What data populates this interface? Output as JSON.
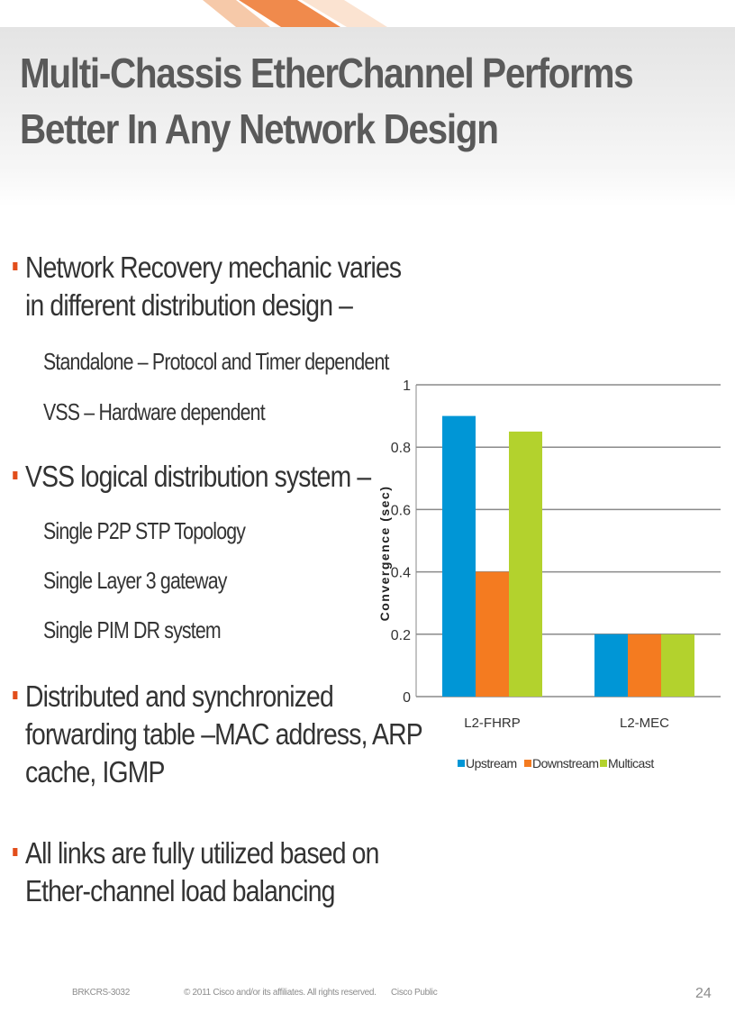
{
  "slide": {
    "title_lines": [
      "Multi-Chassis EtherChannel Performs",
      "Better In Any Network Design"
    ],
    "bullets": [
      {
        "lines": [
          "Network Recovery mechanic varies",
          "in different distribution design –"
        ],
        "sub": [
          "Standalone – Protocol and Timer dependent",
          "VSS – Hardware dependent"
        ]
      },
      {
        "lines": [
          "VSS logical distribution system –"
        ],
        "sub": [
          "Single P2P STP Topology",
          "Single Layer 3 gateway",
          "Single PIM DR system"
        ]
      },
      {
        "lines": [
          "Distributed and synchronized",
          "forwarding table –MAC address, ARP",
          "cache, IGMP"
        ]
      },
      {
        "lines": [
          "All links are fully utilized based on",
          "Ether-channel load balancing"
        ]
      }
    ],
    "footer": {
      "session_id": "BRKCRS-3032",
      "copyright": "© 2011 Cisco and/or its affiliates. All rights reserved.",
      "classification": "Cisco Public",
      "page_number": "24"
    }
  },
  "colors": {
    "accent_orange": "#e24e1b",
    "upstream": "#0096d6",
    "downstream": "#f47b20",
    "multicast": "#b3d22d",
    "gridline": "#8a8a8a",
    "title_text": "#5a5a5a"
  },
  "chart_data": {
    "type": "bar",
    "categories": [
      "L2-FHRP",
      "L2-MEC"
    ],
    "series": [
      {
        "name": "Upstream",
        "values": [
          0.9,
          0.2
        ]
      },
      {
        "name": "Downstream",
        "values": [
          0.4,
          0.2
        ]
      },
      {
        "name": "Multicast",
        "values": [
          0.85,
          0.2
        ]
      }
    ],
    "title": "",
    "xlabel": "",
    "ylabel": "Convergence (sec)",
    "ylim": [
      0,
      1
    ],
    "yticks": [
      0,
      0.2,
      0.4,
      0.6,
      0.8,
      1
    ],
    "ytick_labels": [
      "0",
      "0.2",
      "0.4",
      "0.6",
      "0.8",
      "1"
    ],
    "grid": true,
    "legend": "bottom"
  }
}
